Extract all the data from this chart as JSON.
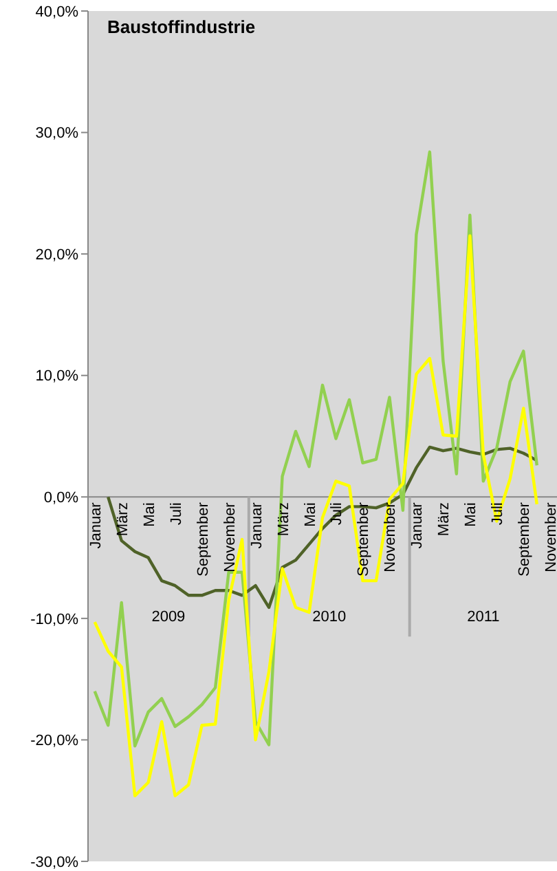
{
  "chart_data": {
    "type": "line",
    "title": "Baustoffindustrie",
    "categories": [
      "Januar",
      null,
      "März",
      null,
      "Mai",
      null,
      "Juli",
      null,
      "September",
      null,
      "November",
      null,
      "Januar",
      null,
      "März",
      null,
      "Mai",
      null,
      "Juli",
      null,
      "September",
      null,
      "November",
      null,
      "Januar",
      null,
      "März",
      null,
      "Mai",
      null,
      "Juli",
      null,
      "September",
      null,
      "November"
    ],
    "series": [
      {
        "color": "#4f6228",
        "values": [
          null,
          0.0,
          -3.6,
          -4.5,
          -5.0,
          -6.9,
          -7.3,
          -8.1,
          -8.1,
          -7.7,
          -7.7,
          -8.1,
          -7.3,
          -9.1,
          -5.8,
          -5.2,
          -3.9,
          -2.6,
          -1.5,
          -0.8,
          -0.8,
          -0.9,
          -0.5,
          0.2,
          2.4,
          4.1,
          3.8,
          4.0,
          3.7,
          3.5,
          3.9,
          4.0,
          3.6,
          3.0,
          null
        ]
      },
      {
        "color": "#92d050",
        "values": [
          -16.0,
          -18.8,
          -8.7,
          -20.5,
          -17.7,
          -16.6,
          -18.9,
          -18.1,
          -17.1,
          -15.7,
          -6.2,
          -6.2,
          -18.5,
          -20.4,
          1.7,
          5.4,
          2.5,
          9.2,
          4.8,
          8.0,
          2.8,
          3.1,
          8.2,
          -1.1,
          21.6,
          28.4,
          11.2,
          1.9,
          23.2,
          1.3,
          4.0,
          9.5,
          12.0,
          2.6,
          null
        ]
      },
      {
        "color": "#ffff00",
        "values": [
          -10.3,
          -12.7,
          -14.0,
          -24.6,
          -23.5,
          -18.5,
          -24.6,
          -23.7,
          -18.8,
          -18.7,
          -8.5,
          -3.5,
          -20.0,
          -14.4,
          -5.9,
          -9.1,
          -9.5,
          -1.7,
          1.3,
          0.9,
          -6.9,
          -6.9,
          -0.2,
          1.1,
          10.1,
          11.4,
          5.1,
          5.0,
          21.5,
          3.5,
          -2.0,
          1.5,
          7.3,
          -0.6,
          null
        ]
      }
    ],
    "ylim": [
      -30,
      40
    ],
    "yticks": [
      {
        "value": -30,
        "label": "-30,0%"
      },
      {
        "value": -20,
        "label": "-20,0%"
      },
      {
        "value": -10,
        "label": "-10,0%"
      },
      {
        "value": 0,
        "label": "0,0%"
      },
      {
        "value": 10,
        "label": "10,0%"
      },
      {
        "value": 20,
        "label": "20,0%"
      },
      {
        "value": 30,
        "label": "30,0%"
      },
      {
        "value": 40,
        "label": "40,0%"
      }
    ],
    "annotations": [
      "2009",
      "2010",
      "2011"
    ],
    "grid": false,
    "marker": "none",
    "line_style": "solid"
  }
}
